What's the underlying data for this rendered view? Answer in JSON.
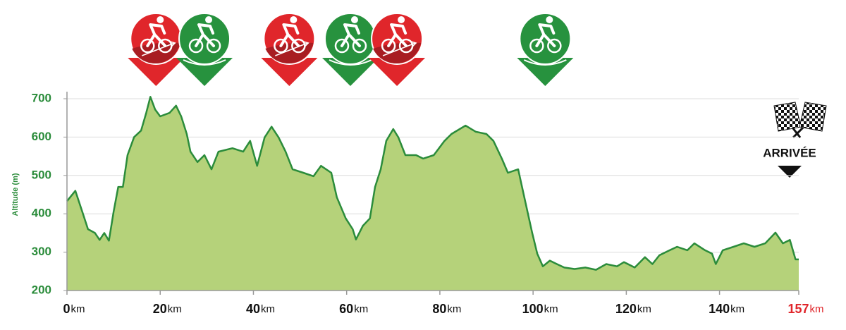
{
  "chart_data": {
    "type": "area",
    "y_label": "Altitude (m)",
    "x_unit": "km",
    "x": [
      0,
      1.8,
      3.3,
      4.5,
      6,
      7,
      8,
      9,
      10,
      11,
      12,
      13,
      14.4,
      15.9,
      17,
      17.9,
      18.9,
      20,
      22,
      23.4,
      24.5,
      25.7,
      26.5,
      28,
      29.5,
      31,
      32.5,
      35.5,
      37.8,
      39.3,
      40.8,
      42.4,
      43.9,
      45.4,
      46.9,
      48.4,
      50.7,
      52.9,
      54.5,
      56.7,
      57.9,
      59.8,
      61.3,
      62,
      63.5,
      65,
      66.1,
      67.3,
      68.5,
      70,
      71.1,
      72.6,
      74.9,
      76.4,
      78.7,
      81,
      82.5,
      85.5,
      87.7,
      90,
      91.5,
      93.3,
      94.6,
      96.8,
      98.3,
      99.8,
      100.9,
      102.1,
      103.6,
      105.1,
      106.7,
      108.9,
      111.2,
      113.5,
      115.7,
      118,
      119.5,
      121.8,
      124,
      125.6,
      127.1,
      129.3,
      130.9,
      133.1,
      134.6,
      136.9,
      138.4,
      139.2,
      140.7,
      143,
      145.2,
      147.5,
      149.8,
      151.3,
      152,
      153.6,
      155.1,
      156.3,
      157
    ],
    "series": [
      {
        "color": "#2b8c3b",
        "fill": "#b5d27a",
        "values": [
          433,
          460,
          405,
          360,
          350,
          332,
          350,
          330,
          405,
          470,
          470,
          553,
          600,
          617,
          663,
          705,
          672,
          654,
          663,
          682,
          654,
          608,
          562,
          535,
          553,
          516,
          562,
          571,
          562,
          590,
          525,
          599,
          627,
          599,
          562,
          516,
          507,
          498,
          525,
          507,
          443,
          388,
          360,
          333,
          369,
          388,
          470,
          516,
          590,
          621,
          599,
          553,
          553,
          544,
          553,
          590,
          608,
          630,
          614,
          608,
          590,
          544,
          507,
          516,
          433,
          351,
          296,
          263,
          278,
          269,
          260,
          256,
          260,
          254,
          269,
          263,
          274,
          260,
          287,
          269,
          292,
          305,
          314,
          305,
          323,
          305,
          296,
          269,
          305,
          314,
          323,
          314,
          323,
          342,
          351,
          323,
          332,
          281,
          281
        ]
      }
    ],
    "xlim": [
      0,
      157
    ],
    "ylim": [
      200,
      700
    ],
    "xticks": [
      0,
      20,
      40,
      60,
      80,
      100,
      120,
      140,
      157
    ],
    "yticks": [
      200,
      300,
      400,
      500,
      600,
      700
    ],
    "grid": true,
    "finish_label": "ARRIVÉE",
    "finish_tick_color": "#e0262b",
    "markers": [
      {
        "x": 19.1,
        "color": "#e0262b"
      },
      {
        "x": 29.5,
        "color": "#27923e"
      },
      {
        "x": 47.7,
        "color": "#e0262b"
      },
      {
        "x": 60.8,
        "color": "#27923e"
      },
      {
        "x": 70.8,
        "color": "#e0262b"
      },
      {
        "x": 102.6,
        "color": "#27923e"
      }
    ]
  }
}
